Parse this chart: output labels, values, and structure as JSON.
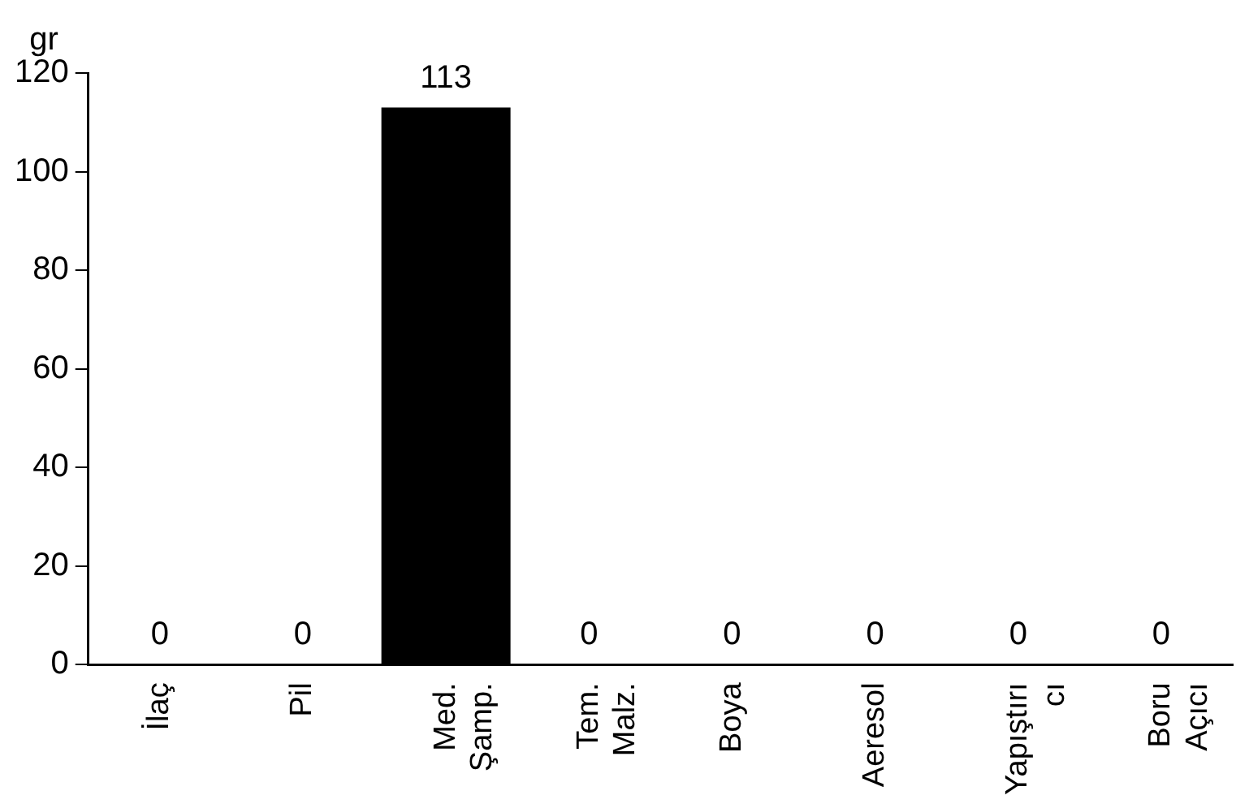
{
  "chart_data": {
    "type": "bar",
    "ylabel": "gr",
    "categories": [
      "İlaç",
      "Pil",
      "Med.\nŞamp.",
      "Tem.\nMalz.",
      "Boya",
      "Aeresol",
      "Yapıştırı\ncı",
      "Boru\nAçıcı"
    ],
    "values": [
      0,
      0,
      113,
      0,
      0,
      0,
      0,
      0
    ],
    "color": "#000000",
    "ylim": [
      0,
      120
    ],
    "yticks": [
      0,
      20,
      40,
      60,
      80,
      100,
      120
    ],
    "grid": false,
    "legend": false,
    "data_labels": true
  }
}
